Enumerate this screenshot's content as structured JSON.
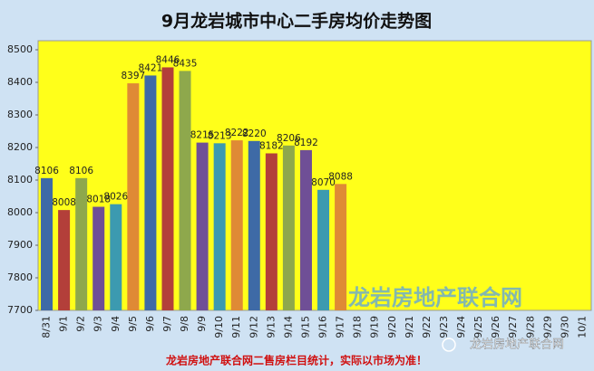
{
  "chart_data": {
    "type": "bar",
    "title": "9月龙岩城市中心二手房均价走势图",
    "categories": [
      "8/31",
      "9/1",
      "9/2",
      "9/3",
      "9/4",
      "9/5",
      "9/6",
      "9/7",
      "9/8",
      "9/9",
      "9/10",
      "9/11",
      "9/12",
      "9/13",
      "9/14",
      "9/15",
      "9/16",
      "9/17",
      "9/18",
      "9/19",
      "9/20",
      "9/21",
      "9/22",
      "9/23",
      "9/24",
      "9/25",
      "9/26",
      "9/27",
      "9/28",
      "9/29",
      "9/30",
      "10/1"
    ],
    "values": [
      8106,
      8008,
      8106,
      8018,
      8026,
      8397,
      8421,
      8446,
      8435,
      8215,
      8213,
      8222,
      8220,
      8182,
      8206,
      8192,
      8070,
      8088,
      null,
      null,
      null,
      null,
      null,
      null,
      null,
      null,
      null,
      null,
      null,
      null,
      null,
      null
    ],
    "palette": [
      "#3e6aa6",
      "#b33f3a",
      "#8ea84c",
      "#6f4f96",
      "#3c9ab0",
      "#df8a35"
    ],
    "ylim": [
      7700,
      8500
    ],
    "yticks": [
      7700,
      7800,
      7900,
      8000,
      8100,
      8200,
      8300,
      8400,
      8500
    ],
    "grid": false,
    "annotations": [
      "龙岩房地产联合网二售房栏目统计，实际以市场为准！",
      "龙岩房地产联合网",
      "龙岩房地产联合网"
    ]
  }
}
